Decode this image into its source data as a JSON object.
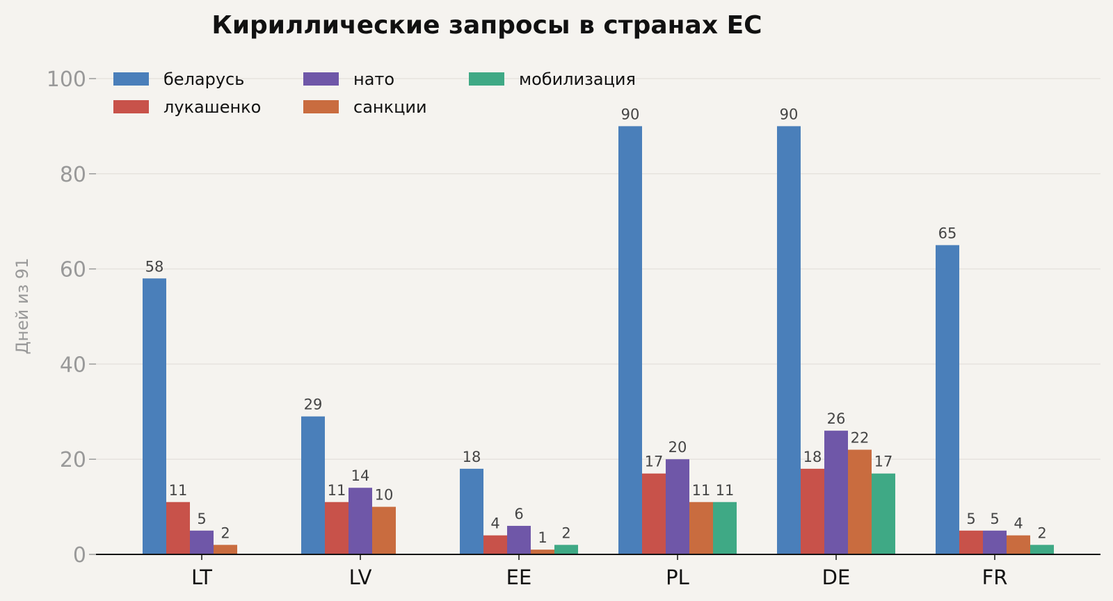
{
  "chart_data": {
    "type": "bar",
    "title": "Кириллические запросы в странах ЕС",
    "xlabel": "",
    "ylabel": "Дней из 91",
    "ylim": [
      0,
      100
    ],
    "yticks": [
      0,
      20,
      40,
      60,
      80,
      100
    ],
    "grid": true,
    "legend_position": "top-left",
    "categories": [
      "LT",
      "LV",
      "EE",
      "PL",
      "DE",
      "FR"
    ],
    "series": [
      {
        "name": "беларусь",
        "color": "#4a7fba",
        "values": [
          58,
          29,
          18,
          90,
          90,
          65
        ]
      },
      {
        "name": "лукашенко",
        "color": "#c8524a",
        "values": [
          11,
          11,
          4,
          17,
          18,
          5
        ]
      },
      {
        "name": "нато",
        "color": "#6f57a8",
        "values": [
          5,
          14,
          6,
          20,
          26,
          5
        ]
      },
      {
        "name": "санкции",
        "color": "#c96c3f",
        "values": [
          2,
          10,
          1,
          11,
          22,
          4
        ]
      },
      {
        "name": "мобилизация",
        "color": "#3fa985",
        "values": [
          0,
          0,
          2,
          11,
          17,
          2
        ]
      }
    ]
  }
}
